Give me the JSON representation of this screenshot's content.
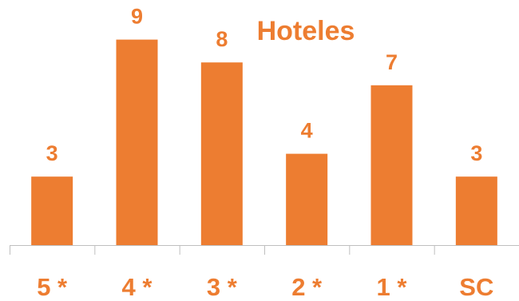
{
  "chart_data": {
    "type": "bar",
    "title": "Hoteles",
    "categories": [
      "5 *",
      "4 *",
      "3 *",
      "2 *",
      "1 *",
      "SC"
    ],
    "values": [
      3,
      9,
      8,
      4,
      7,
      3
    ],
    "data_labels": [
      "3",
      "9",
      "8",
      "4",
      "7",
      "3"
    ],
    "xlabel": "",
    "ylabel": "",
    "ylim": [
      0,
      9
    ],
    "grid": false,
    "legend": "none",
    "colors": {
      "bar": "#ED7D31",
      "text": "#ED7D31",
      "axis": "#BFBFBF"
    }
  }
}
